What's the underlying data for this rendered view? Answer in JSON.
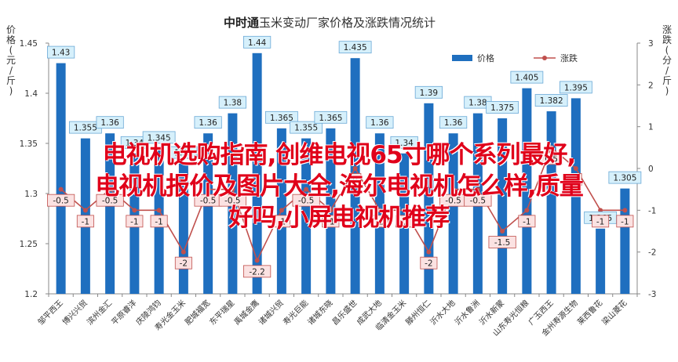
{
  "chart_data": {
    "type": "bar+line",
    "title": {
      "brand": "中时通",
      "rest": "玉米变动厂家价格及涨跌情况统计"
    },
    "ylabel_left": [
      "价",
      "格",
      "(",
      "元",
      "/",
      "斤",
      ")"
    ],
    "ylabel_right": [
      "涨",
      "跌",
      "(",
      "分",
      "/",
      "斤",
      ")"
    ],
    "categories": [
      "邹平西王",
      "博兴兴贸",
      "滨州金汇",
      "平原睿洋",
      "庆陵鸿钧",
      "寿光金玉米",
      "肥城福宽",
      "东平瑞星",
      "禹城金鹰",
      "诸城兴贸",
      "寿光巨能",
      "诸城东晓",
      "昌乐盛世",
      "成武大地",
      "临清金玉米",
      "滕州恒仁",
      "沂水大地",
      "沂水鲁洲",
      "沂水新蒙",
      "山东寿光恒粮",
      "广玉西王",
      "金州寿源生物",
      "莱西鲁花",
      "梁山菱花"
    ],
    "series": [
      {
        "name": "价格",
        "type": "bar",
        "values": [
          1.43,
          1.355,
          1.36,
          1.34,
          1.345,
          1.33,
          1.36,
          1.38,
          1.44,
          1.365,
          1.355,
          1.365,
          1.435,
          1.36,
          1.34,
          1.39,
          1.36,
          1.38,
          1.375,
          1.405,
          1.382,
          1.395,
          1.265,
          1.305
        ],
        "labels": [
          "1.43",
          "1.355",
          "1.36",
          "1.34",
          "1.345",
          "1.33",
          "1.36",
          "1.38",
          "1.44",
          "1.365",
          "1.355",
          "1.365",
          "1.435",
          "1.36",
          "1.34",
          "1.39",
          "1.36",
          "1.38",
          "1.375",
          "1.405",
          "1.382",
          "1.395",
          "1.265",
          "1.305"
        ]
      },
      {
        "name": "涨跌",
        "type": "line",
        "values": [
          -0.5,
          -1,
          -0.5,
          -1,
          -1,
          -2,
          -0.5,
          -0.5,
          -2.2,
          -1,
          -0.5,
          -1,
          0,
          -1,
          -1,
          -2,
          -0.5,
          -0.5,
          -1.5,
          -1,
          0.5,
          0,
          -1,
          -1
        ],
        "labels": [
          "-0.5",
          "-1",
          "-0.5",
          "-1",
          "-1",
          "-2",
          "-0.5",
          "-0.5",
          "-2.2",
          "-1",
          "-0.5",
          "-1",
          "0",
          "-1",
          "-1",
          "-2",
          "-0.5",
          "-0.5",
          "-1.5",
          "-1",
          "0.5",
          "0",
          "-1",
          "-1"
        ]
      }
    ],
    "y_left": {
      "min": 1.2,
      "max": 1.45,
      "ticks": [
        "1.2",
        "1.25",
        "1.3",
        "1.35",
        "1.4",
        "1.45"
      ]
    },
    "y_right": {
      "min": -3,
      "max": 3,
      "ticks": [
        "-3",
        "-2",
        "-1",
        "0",
        "1",
        "2",
        "3"
      ]
    },
    "legend_position": "top-right",
    "grid": false,
    "colors": {
      "bar": "#1f6fbf",
      "line": "#c0504d",
      "data_label_bar_bg": "#d6f0fb",
      "data_label_line_bg": "#fbe2e2"
    }
  },
  "overlay_text": [
    "电视机选购指南,创维电视65寸哪个系列最好,",
    "电视机报价及图片大全,海尔电视机怎么样,质量",
    "好吗,小屏电视机推荐"
  ]
}
